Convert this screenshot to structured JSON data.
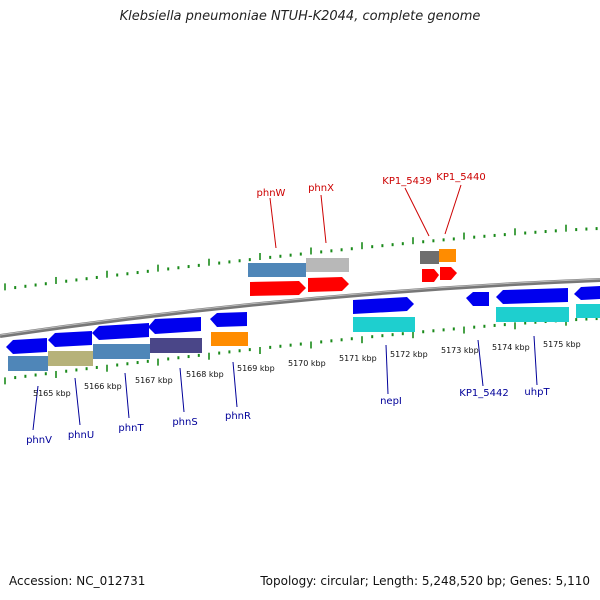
{
  "title": "Klebsiella pneumoniae NTUH-K2044, complete genome",
  "footer": {
    "accession": "Accession: NC_012731",
    "summary": "Topology: circular; Length: 5,248,520 bp; Genes: 5,110"
  },
  "colors": {
    "backbone": "#888888",
    "tick": "#1a8a1a",
    "gene_blue": "#0000ee",
    "gene_red": "#ff0000",
    "gene_orange": "#ff8c00",
    "gene_cyan": "#1ecfcf",
    "label_blue": "#000099",
    "label_red": "#cc0000",
    "cog_steelblue": "#4f86b8",
    "cog_khaki": "#b6b27a",
    "cog_darkslate": "#4a4688",
    "cog_silver": "#b8b8b8",
    "cog_darkgray": "#6e6e6e"
  },
  "scale_labels": [
    "5165 kbp",
    "5166 kbp",
    "5167 kbp",
    "5168 kbp",
    "5169 kbp",
    "5170 kbp",
    "5171 kbp",
    "5172 kbp",
    "5173 kbp",
    "5174 kbp",
    "5175 kbp"
  ],
  "genes_bottom": [
    {
      "name": "phnV",
      "strand": "-"
    },
    {
      "name": "phnU",
      "strand": "-"
    },
    {
      "name": "phnT",
      "strand": "-"
    },
    {
      "name": "phnS",
      "strand": "-"
    },
    {
      "name": "phnR",
      "strand": "-"
    },
    {
      "name": "nepI",
      "strand": "+"
    },
    {
      "name": "KP1_5442",
      "strand": "-"
    },
    {
      "name": "uhpT",
      "strand": "-"
    }
  ],
  "genes_top": [
    {
      "name": "phnW",
      "strand": "+"
    },
    {
      "name": "phnX",
      "strand": "+"
    },
    {
      "name": "KP1_5439",
      "strand": "+"
    },
    {
      "name": "KP1_5440",
      "strand": "+"
    }
  ]
}
